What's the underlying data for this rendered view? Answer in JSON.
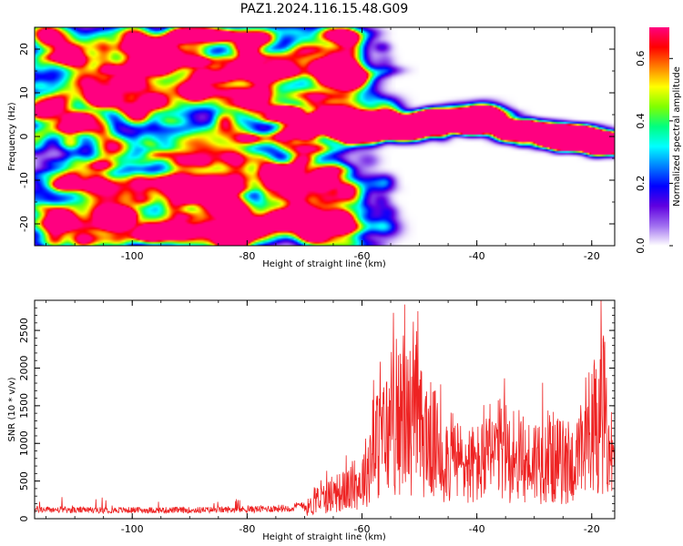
{
  "title": "PAZ1.2024.116.15.48.G09",
  "chart_data": [
    {
      "type": "heatmap",
      "xlabel": "Height of straight line (km)",
      "ylabel": "Frequency (Hz)",
      "xlim": [
        -117,
        -16
      ],
      "ylim": [
        -25,
        25
      ],
      "x_ticks": [
        -100,
        -80,
        -60,
        -40,
        -20
      ],
      "y_ticks": [
        -20,
        -10,
        0,
        10,
        20
      ],
      "colorbar": {
        "label": "Normalized spectral amplitude",
        "range": [
          0,
          0.7
        ],
        "ticks": [
          0.0,
          0.2,
          0.4,
          0.6
        ],
        "colormap": [
          "#ffffff",
          "#a070f0",
          "#6000e0",
          "#0000ff",
          "#0080ff",
          "#00ffff",
          "#00ff80",
          "#80ff00",
          "#ffff00",
          "#ff8000",
          "#ff0000",
          "#ff0080"
        ]
      },
      "ridge": {
        "points": [
          [
            -76,
            3
          ],
          [
            -70,
            3
          ],
          [
            -62,
            2
          ],
          [
            -55,
            3
          ],
          [
            -45,
            3
          ],
          [
            -38,
            4
          ],
          [
            -32,
            1
          ],
          [
            -25,
            0
          ],
          [
            -20,
            -1
          ],
          [
            -16,
            -2
          ]
        ],
        "peak_amplitude": 0.7
      },
      "noise_region_xmax": -67,
      "noise_level": 0.25
    },
    {
      "type": "line",
      "xlabel": "Height of straight line (km)",
      "ylabel": "SNR (10 * v/v)",
      "xlim": [
        -117,
        -16
      ],
      "ylim": [
        0,
        2900
      ],
      "x_ticks": [
        -100,
        -80,
        -60,
        -40,
        -20
      ],
      "y_ticks": [
        0,
        500,
        1000,
        1500,
        2000,
        2500
      ],
      "color": "#ee2222",
      "series": [
        {
          "x": [
            -117,
            -110,
            -100,
            -90,
            -80,
            -72,
            -69,
            -67,
            -65,
            -62,
            -60,
            -58,
            -56,
            -54,
            -52,
            -50,
            -48,
            -46,
            -44,
            -42,
            -40,
            -38,
            -36,
            -34,
            -32,
            -30,
            -28,
            -26,
            -24,
            -22,
            -20,
            -19,
            -18,
            -17,
            -16
          ],
          "y": [
            130,
            120,
            120,
            120,
            130,
            150,
            250,
            400,
            500,
            600,
            750,
            1400,
            1700,
            1900,
            2100,
            1800,
            1600,
            1300,
            1200,
            1100,
            1100,
            1200,
            1400,
            1300,
            1100,
            1200,
            1300,
            1200,
            1100,
            1200,
            1500,
            2000,
            2200,
            1700,
            800
          ]
        }
      ]
    }
  ]
}
